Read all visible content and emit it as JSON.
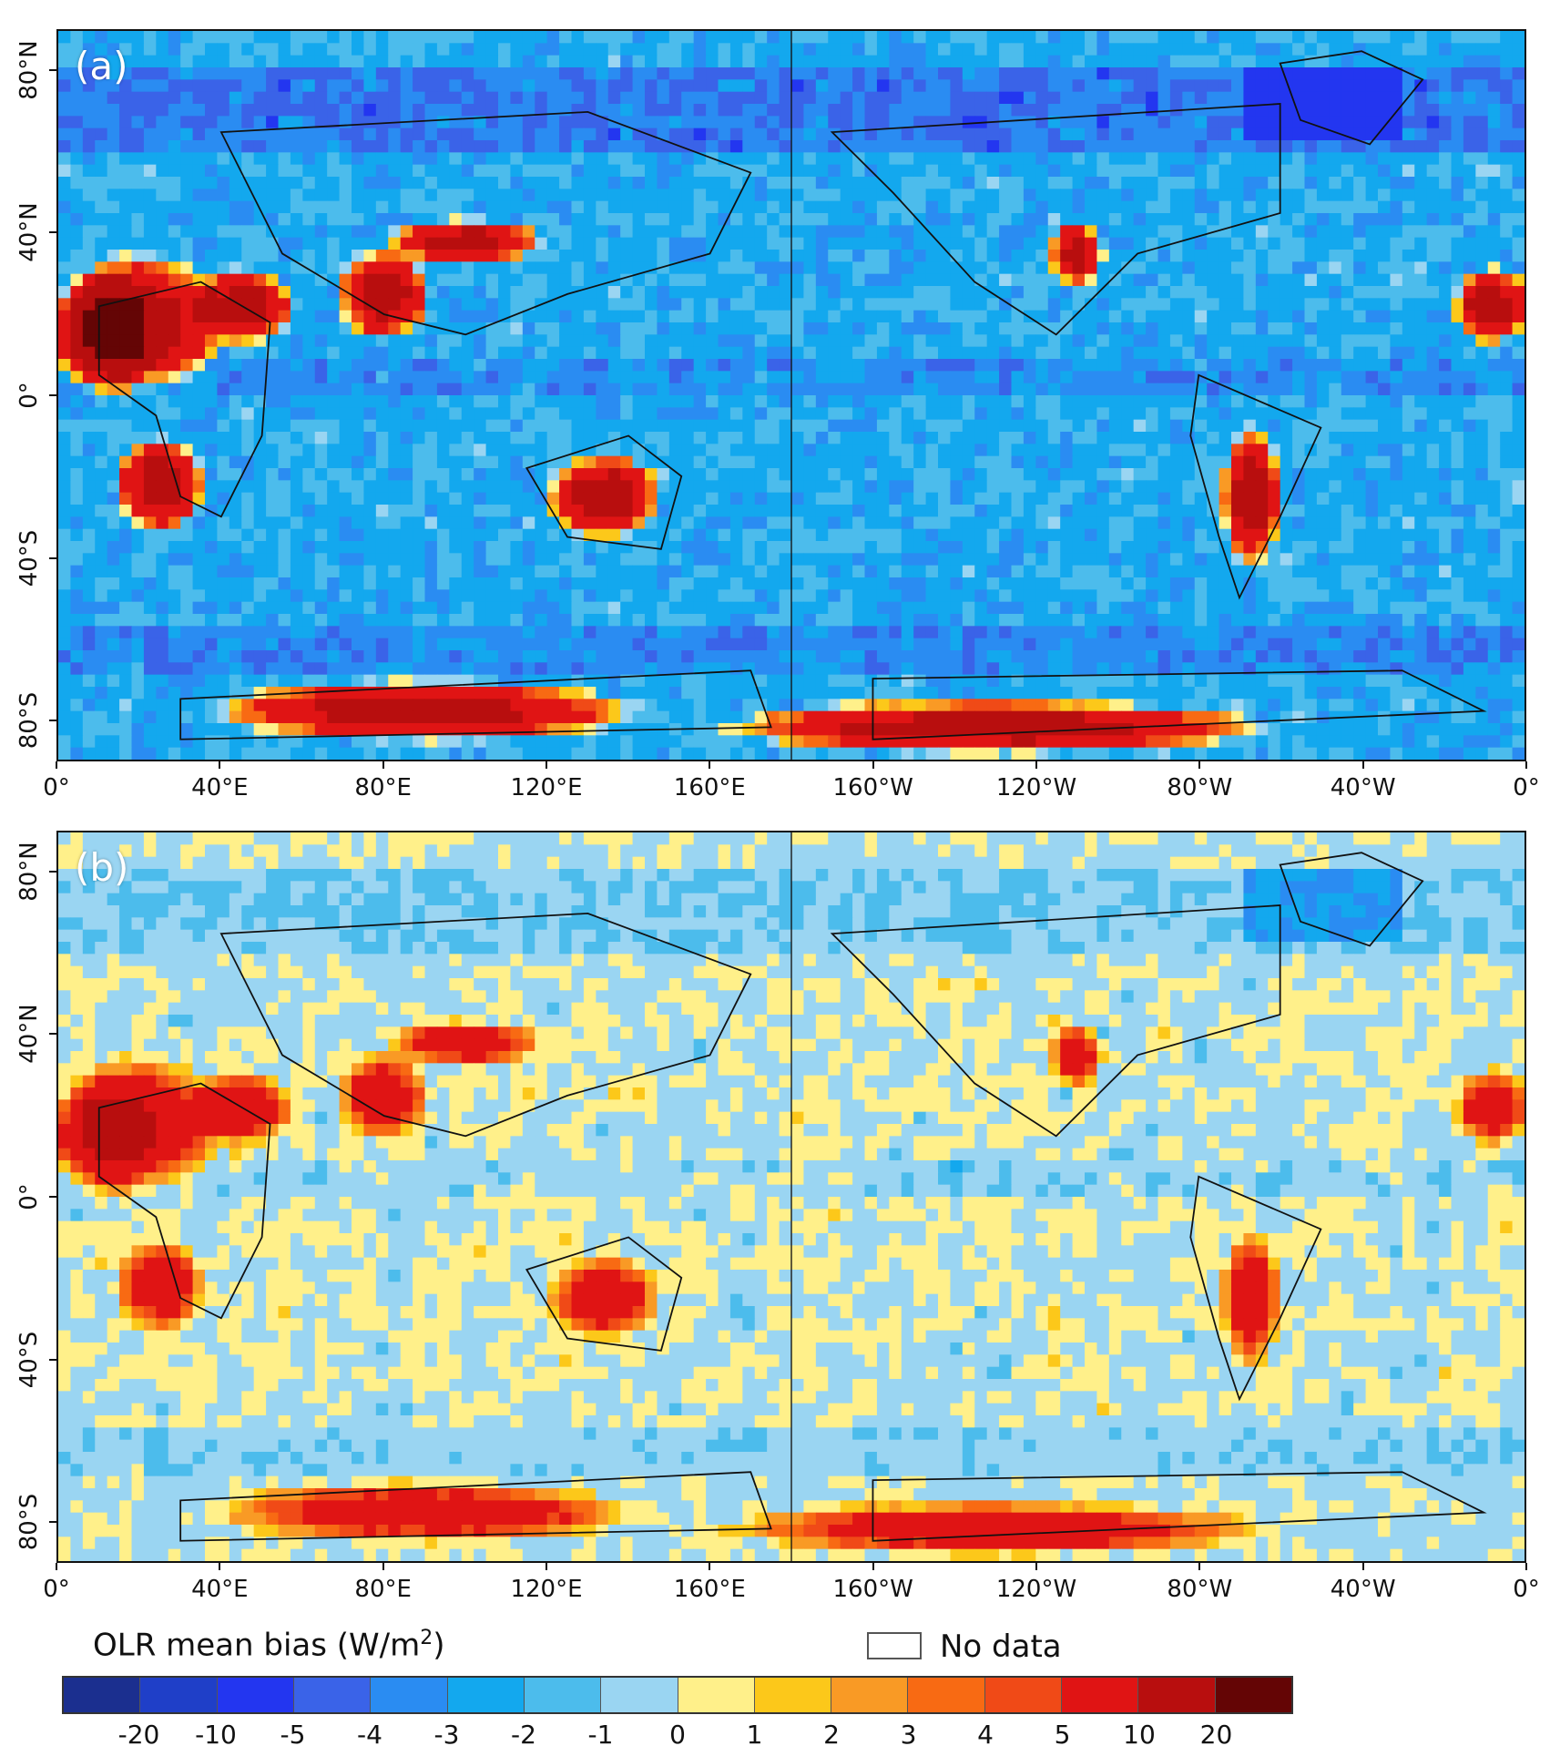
{
  "panels": [
    {
      "label": "(a)",
      "variant": "a"
    },
    {
      "label": "(b)",
      "variant": "b"
    }
  ],
  "x_ticks": [
    "0°",
    "40°E",
    "80°E",
    "120°E",
    "160°E",
    "160°W",
    "120°W",
    "80°W",
    "40°W",
    "0°"
  ],
  "y_ticks": [
    "80°N",
    "40°N",
    "0°",
    "40°S",
    "80°S"
  ],
  "map_extent": {
    "lon_min": 0,
    "lon_max": 360,
    "lat_min": -90,
    "lat_max": 90
  },
  "legend": {
    "title": "OLR mean bias (W/m",
    "title_sup": "2",
    "title_close": ")",
    "no_data_label": "No data",
    "colors": [
      "#1b2f8f",
      "#1f3fc8",
      "#2336f0",
      "#3a63e8",
      "#2a8cf2",
      "#13a8ee",
      "#4cbcec",
      "#9ad5f2",
      "#fff08a",
      "#fcc81a",
      "#f99a25",
      "#f86a13",
      "#f04a17",
      "#e01414",
      "#b80e0e",
      "#640505"
    ],
    "tick_labels": [
      "-20",
      "-10",
      "-5",
      "-4",
      "-3",
      "-2",
      "-1",
      "0",
      "1",
      "2",
      "3",
      "4",
      "5",
      "10",
      "20"
    ]
  }
}
